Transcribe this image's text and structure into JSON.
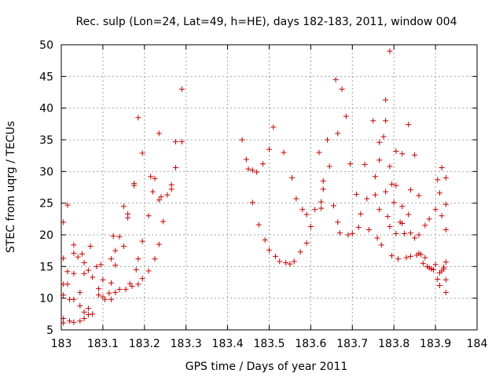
{
  "chart_data": {
    "type": "scatter",
    "title": "Rec. sulp (Lon=24, Lat=49, h=HE), days 182-183, 2011, window 004",
    "xlabel": "GPS time / Days of year 2011",
    "ylabel": "STEC from uqrg / TECUs",
    "xlim": [
      183,
      184
    ],
    "ylim": [
      5,
      50
    ],
    "xticks": [
      183,
      183.1,
      183.2,
      183.3,
      183.4,
      183.5,
      183.6,
      183.7,
      183.8,
      183.9,
      184
    ],
    "xtick_labels": [
      "183",
      "183.1",
      "183.2",
      "183.3",
      "183.4",
      "183.5",
      "183.6",
      "183.7",
      "183.8",
      "183.9",
      "184"
    ],
    "yticks": [
      5,
      10,
      15,
      20,
      25,
      30,
      35,
      40,
      45,
      50
    ],
    "ytick_labels": [
      "5",
      "10",
      "15",
      "20",
      "25",
      "30",
      "35",
      "40",
      "45",
      "50"
    ],
    "grid": true,
    "marker": "+",
    "color": "#cc0000",
    "series": [
      {
        "name": "STEC",
        "points": [
          [
            183.005,
            22.0
          ],
          [
            183.005,
            16.3
          ],
          [
            183.005,
            12.2
          ],
          [
            183.005,
            10.5
          ],
          [
            183.005,
            6.8
          ],
          [
            183.005,
            6.1
          ],
          [
            183.015,
            24.7
          ],
          [
            183.015,
            14.2
          ],
          [
            183.015,
            12.2
          ],
          [
            183.02,
            9.8
          ],
          [
            183.02,
            6.4
          ],
          [
            183.03,
            18.4
          ],
          [
            183.03,
            17.1
          ],
          [
            183.03,
            13.9
          ],
          [
            183.03,
            9.8
          ],
          [
            183.03,
            6.2
          ],
          [
            183.04,
            16.5
          ],
          [
            183.045,
            10.9
          ],
          [
            183.045,
            8.8
          ],
          [
            183.045,
            6.4
          ],
          [
            183.05,
            17.0
          ],
          [
            183.055,
            15.6
          ],
          [
            183.055,
            13.9
          ],
          [
            183.055,
            7.8
          ],
          [
            183.055,
            6.8
          ],
          [
            183.065,
            14.4
          ],
          [
            183.065,
            8.4
          ],
          [
            183.065,
            7.4
          ],
          [
            183.07,
            18.2
          ],
          [
            183.075,
            13.3
          ],
          [
            183.075,
            7.5
          ],
          [
            183.085,
            15.0
          ],
          [
            183.09,
            11.5
          ],
          [
            183.09,
            10.5
          ],
          [
            183.095,
            15.3
          ],
          [
            183.1,
            12.9
          ],
          [
            183.1,
            10.2
          ],
          [
            183.105,
            9.8
          ],
          [
            183.115,
            10.8
          ],
          [
            183.12,
            16.2
          ],
          [
            183.12,
            12.4
          ],
          [
            183.12,
            9.8
          ],
          [
            183.125,
            19.8
          ],
          [
            183.13,
            17.5
          ],
          [
            183.13,
            15.2
          ],
          [
            183.13,
            10.9
          ],
          [
            183.14,
            19.7
          ],
          [
            183.14,
            11.4
          ],
          [
            183.15,
            24.5
          ],
          [
            183.15,
            18.2
          ],
          [
            183.155,
            11.4
          ],
          [
            183.16,
            22.7
          ],
          [
            183.16,
            23.3
          ],
          [
            183.165,
            12.3
          ],
          [
            183.17,
            11.9
          ],
          [
            183.175,
            28.1
          ],
          [
            183.175,
            27.8
          ],
          [
            183.18,
            14.5
          ],
          [
            183.185,
            38.5
          ],
          [
            183.185,
            16.2
          ],
          [
            183.185,
            12.2
          ],
          [
            183.195,
            32.9
          ],
          [
            183.195,
            19.0
          ],
          [
            183.195,
            13.1
          ],
          [
            183.21,
            23.0
          ],
          [
            183.21,
            14.3
          ],
          [
            183.215,
            29.2
          ],
          [
            183.22,
            26.8
          ],
          [
            183.225,
            28.9
          ],
          [
            183.225,
            16.2
          ],
          [
            183.235,
            36.0
          ],
          [
            183.235,
            25.5
          ],
          [
            183.235,
            18.5
          ],
          [
            183.24,
            26.0
          ],
          [
            183.245,
            22.1
          ],
          [
            183.255,
            26.3
          ],
          [
            183.265,
            27.9
          ],
          [
            183.265,
            27.2
          ],
          [
            183.275,
            34.7
          ],
          [
            183.275,
            30.6
          ],
          [
            183.29,
            43.0
          ],
          [
            183.29,
            34.7
          ],
          [
            183.435,
            35.0
          ],
          [
            183.445,
            31.9
          ],
          [
            183.45,
            30.4
          ],
          [
            183.46,
            30.2
          ],
          [
            183.46,
            25.1
          ],
          [
            183.47,
            29.9
          ],
          [
            183.475,
            21.6
          ],
          [
            183.485,
            31.2
          ],
          [
            183.49,
            19.2
          ],
          [
            183.5,
            33.5
          ],
          [
            183.5,
            17.6
          ],
          [
            183.51,
            37.0
          ],
          [
            183.515,
            16.6
          ],
          [
            183.525,
            15.8
          ],
          [
            183.535,
            33.0
          ],
          [
            183.54,
            15.6
          ],
          [
            183.55,
            15.4
          ],
          [
            183.555,
            29.0
          ],
          [
            183.56,
            15.8
          ],
          [
            183.565,
            25.7
          ],
          [
            183.575,
            17.3
          ],
          [
            183.58,
            24.0
          ],
          [
            183.59,
            23.2
          ],
          [
            183.59,
            18.7
          ],
          [
            183.6,
            21.3
          ],
          [
            183.61,
            24.0
          ],
          [
            183.62,
            33.0
          ],
          [
            183.625,
            25.2
          ],
          [
            183.625,
            24.2
          ],
          [
            183.63,
            28.5
          ],
          [
            183.63,
            27.2
          ],
          [
            183.64,
            35.0
          ],
          [
            183.645,
            30.8
          ],
          [
            183.655,
            24.6
          ],
          [
            183.66,
            44.5
          ],
          [
            183.665,
            36.0
          ],
          [
            183.665,
            22.0
          ],
          [
            183.67,
            20.3
          ],
          [
            183.675,
            43.0
          ],
          [
            183.685,
            38.7
          ],
          [
            183.69,
            20.0
          ],
          [
            183.695,
            31.2
          ],
          [
            183.7,
            20.2
          ],
          [
            183.71,
            26.4
          ],
          [
            183.715,
            21.2
          ],
          [
            183.72,
            23.3
          ],
          [
            183.73,
            31.1
          ],
          [
            183.735,
            25.7
          ],
          [
            183.74,
            20.8
          ],
          [
            183.75,
            38.0
          ],
          [
            183.755,
            29.2
          ],
          [
            183.755,
            26.3
          ],
          [
            183.76,
            19.5
          ],
          [
            183.765,
            34.6
          ],
          [
            183.765,
            31.8
          ],
          [
            183.765,
            24.0
          ],
          [
            183.77,
            18.4
          ],
          [
            183.775,
            35.5
          ],
          [
            183.78,
            41.3
          ],
          [
            183.78,
            38.0
          ],
          [
            183.78,
            26.8
          ],
          [
            183.785,
            22.9
          ],
          [
            183.79,
            49.0
          ],
          [
            183.79,
            30.8
          ],
          [
            183.79,
            21.3
          ],
          [
            183.795,
            28.0
          ],
          [
            183.795,
            16.7
          ],
          [
            183.8,
            25.1
          ],
          [
            183.805,
            33.2
          ],
          [
            183.805,
            27.8
          ],
          [
            183.805,
            20.2
          ],
          [
            183.81,
            16.2
          ],
          [
            183.815,
            22.0
          ],
          [
            183.82,
            32.8
          ],
          [
            183.82,
            24.5
          ],
          [
            183.82,
            21.8
          ],
          [
            183.825,
            20.2
          ],
          [
            183.83,
            16.4
          ],
          [
            183.835,
            37.4
          ],
          [
            183.835,
            23.2
          ],
          [
            183.84,
            27.1
          ],
          [
            183.84,
            20.3
          ],
          [
            183.84,
            16.6
          ],
          [
            183.85,
            32.6
          ],
          [
            183.85,
            19.5
          ],
          [
            183.855,
            16.8
          ],
          [
            183.86,
            26.2
          ],
          [
            183.86,
            20.0
          ],
          [
            183.86,
            17.1
          ],
          [
            183.865,
            16.9
          ],
          [
            183.87,
            15.5
          ],
          [
            183.875,
            21.5
          ],
          [
            183.875,
            16.4
          ],
          [
            183.88,
            15.0
          ],
          [
            183.885,
            22.5
          ],
          [
            183.885,
            14.8
          ],
          [
            183.89,
            14.6
          ],
          [
            183.895,
            14.5
          ],
          [
            183.9,
            24.0
          ],
          [
            183.9,
            15.3
          ],
          [
            183.905,
            28.7
          ],
          [
            183.905,
            13.0
          ],
          [
            183.91,
            26.6
          ],
          [
            183.91,
            14.0
          ],
          [
            183.91,
            12.0
          ],
          [
            183.915,
            30.6
          ],
          [
            183.915,
            23.0
          ],
          [
            183.915,
            14.3
          ],
          [
            183.92,
            14.9
          ],
          [
            183.92,
            14.6
          ],
          [
            183.925,
            29.0
          ],
          [
            183.925,
            24.8
          ],
          [
            183.925,
            20.8
          ],
          [
            183.925,
            15.7
          ],
          [
            183.925,
            12.9
          ],
          [
            183.925,
            10.9
          ]
        ]
      }
    ]
  }
}
